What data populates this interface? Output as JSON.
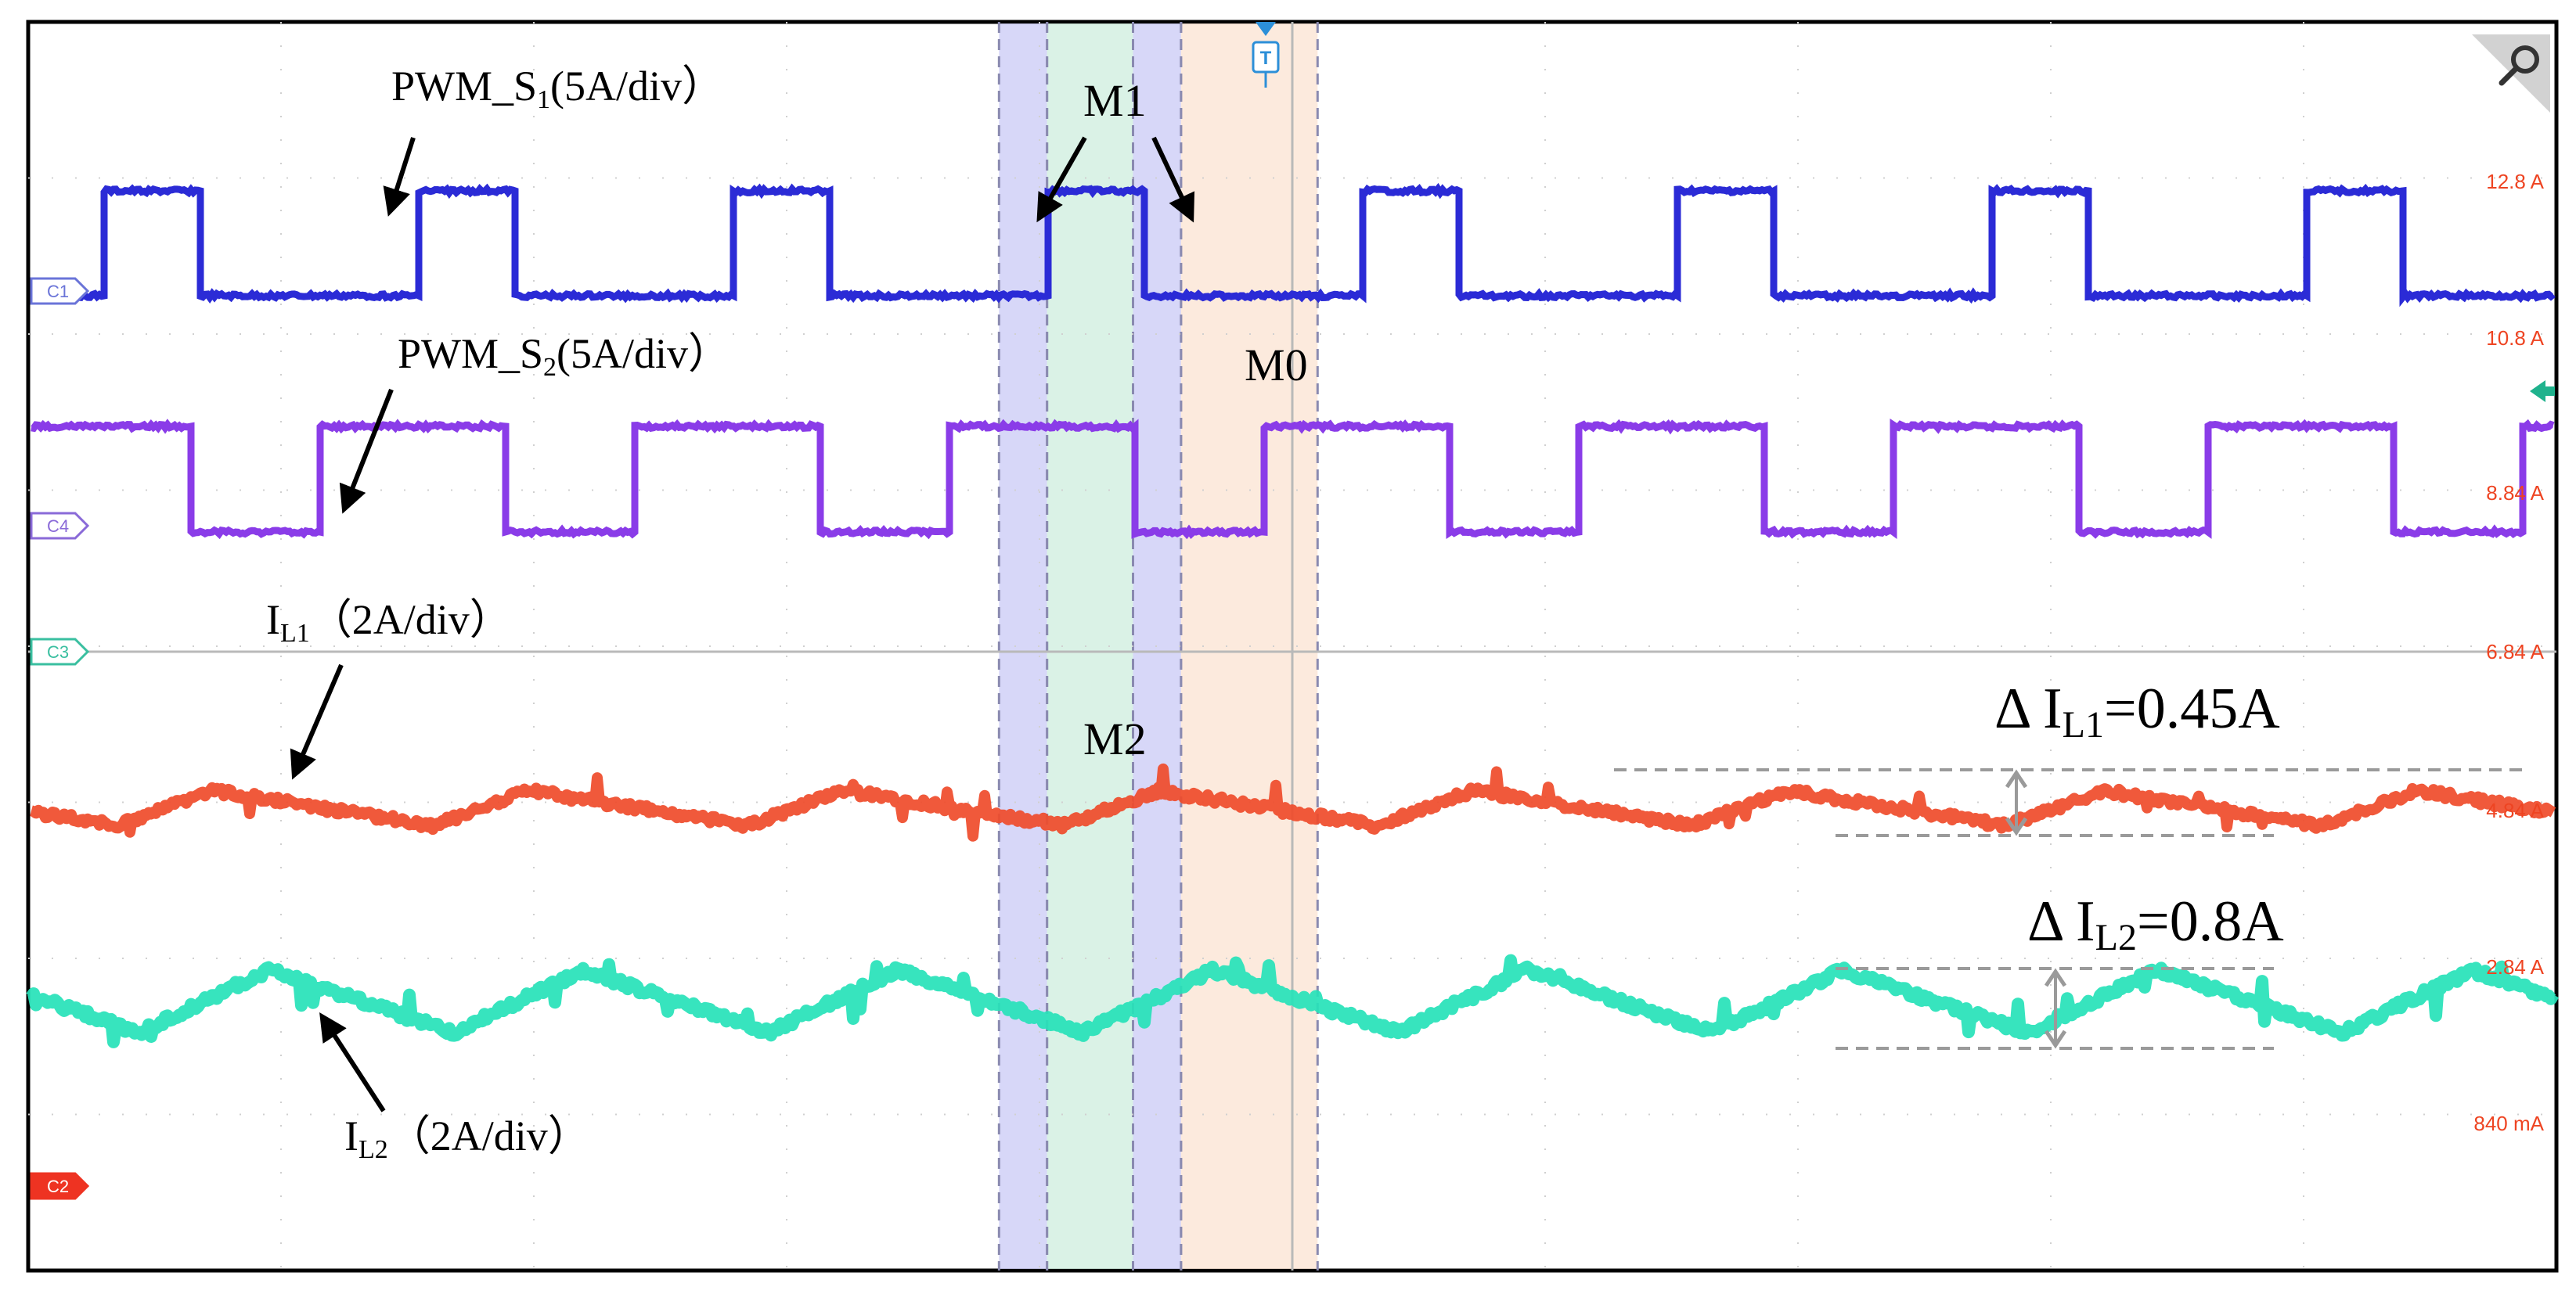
{
  "chart_data": {
    "type": "line",
    "title": "",
    "xlabel": "",
    "ylabel": "",
    "grid": true,
    "series": [
      {
        "channel": "C1",
        "label": "PWM_S",
        "sub": "1",
        "unit": "(5A/div）",
        "color": "#2b2bd6",
        "kind": "pwm",
        "low": 0,
        "high": 1,
        "period": 0.1245,
        "duty": 0.305,
        "rise_phase": 0.0295
      },
      {
        "channel": "C4",
        "label": "PWM_S",
        "sub": "2",
        "unit": "(5A/div）",
        "color": "#8a3ce8",
        "kind": "pwm",
        "low": 0,
        "high": 1,
        "period": 0.1245,
        "duty": 0.59,
        "rise_phase": -0.0095
      },
      {
        "channel": "C3",
        "label": "I",
        "sub": "L1",
        "unit": "（2A/div）",
        "color": "#ef4b2a",
        "kind": "triangle",
        "peak_phase": 0.0735,
        "period": 0.1245,
        "rise_fraction": 0.305,
        "amplitude_A": 0.45
      },
      {
        "channel": "C2",
        "label": "I",
        "sub": "L2",
        "unit": "（2A/div）",
        "color": "#26e2b8",
        "kind": "triangle",
        "peak_phase": 0.095,
        "period": 0.1245,
        "rise_fraction": 0.41,
        "amplitude_A": 0.8
      }
    ],
    "channel_markers": [
      "C1",
      "C4",
      "C3",
      "C2"
    ],
    "scale_labels": [
      "12.8 A",
      "10.8 A",
      "8.84 A",
      "6.84 A",
      "4.84 A",
      "2.84 A",
      "840 mA"
    ],
    "modes": [
      {
        "name": "M1",
        "color": "#7060c0"
      },
      {
        "name": "M2",
        "color": "#20b060"
      },
      {
        "name": "M0",
        "color": "#f07a20"
      }
    ],
    "mode_bands": [
      {
        "mode": "M1",
        "x0": 0.384,
        "x1": 0.403,
        "fill": "#c9c9f6"
      },
      {
        "mode": "M2",
        "x0": 0.403,
        "x1": 0.437,
        "fill": "#cdeedd"
      },
      {
        "mode": "M1",
        "x0": 0.437,
        "x1": 0.456,
        "fill": "#c9c9f6"
      },
      {
        "mode": "M0",
        "x0": 0.456,
        "x1": 0.51,
        "fill": "#fbe3d2"
      }
    ],
    "ripple_annotations": [
      {
        "prefix": "Δ I",
        "sub": "L1",
        "value": "=0.45A"
      },
      {
        "prefix": "Δ I",
        "sub": "L2",
        "value": "=0.8A"
      }
    ]
  }
}
